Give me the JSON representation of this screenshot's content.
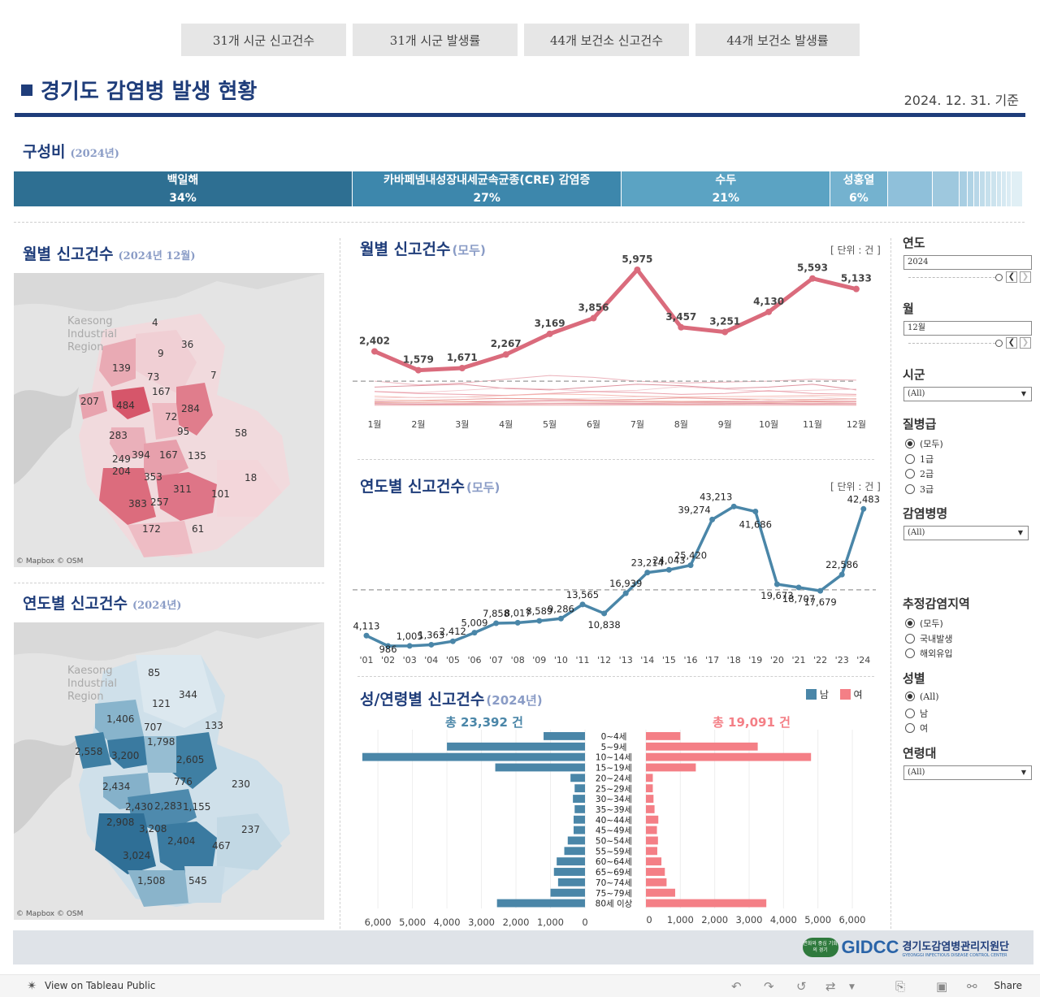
{
  "tabs": [
    "31개 시군 신고건수",
    "31개 시군 발생률",
    "44개 보건소 신고건수",
    "44개 보건소 발생률"
  ],
  "header": {
    "title": "경기도 감염병 발생 현황",
    "as_of": "2024. 12. 31. 기준"
  },
  "composition": {
    "title": "구성비",
    "sub": "(2024년)",
    "segments": [
      {
        "label": "백일해",
        "pct": "34%",
        "color": "#2e6f92"
      },
      {
        "label": "카바페넴내성장내세균속균종(CRE) 감염증",
        "pct": "27%",
        "color": "#3d87ac"
      },
      {
        "label": "수두",
        "pct": "21%",
        "color": "#5ba3c3"
      },
      {
        "label": "성홍열",
        "pct": "6%",
        "color": "#74b2cf"
      }
    ],
    "small_segments": [
      "#8fc0da",
      "#9ec8de",
      "#a8cee2",
      "#b0d3e5",
      "#b8d7e8",
      "#c0dcea",
      "#c6e0ec",
      "#ccE3ee",
      "#d1e6f0",
      "#d6e9f2",
      "#dbecf4",
      "#e0eff5"
    ]
  },
  "map_monthly": {
    "title": "월별 신고건수",
    "sub": "(2024년 12월)",
    "labels": [
      "4",
      "36",
      "9",
      "139",
      "73",
      "7",
      "167",
      "207",
      "484",
      "284",
      "72",
      "95",
      "58",
      "283",
      "394",
      "167",
      "135",
      "249",
      "204",
      "353",
      "18",
      "311",
      "101",
      "383",
      "257",
      "172",
      "61"
    ],
    "ghost": "Kaesong Industrial Region",
    "credit": "© Mapbox  © OSM"
  },
  "map_yearly": {
    "title": "연도별 신고건수",
    "sub": "(2024년)",
    "labels": [
      "85",
      "344",
      "121",
      "1,406",
      "707",
      "133",
      "1,798",
      "2,558",
      "3,200",
      "2,605",
      "2,434",
      "776",
      "230",
      "2,430",
      "2,283",
      "1,155",
      "2,908",
      "3,208",
      "237",
      "2,404",
      "467",
      "3,024",
      "1,508",
      "545"
    ],
    "ghost": "Kaesong Industrial Region",
    "credit": "© Mapbox  © OSM"
  },
  "monthly_chart": {
    "title": "월별 신고건수",
    "sub": "(모두)",
    "unit": "[ 단위 : 건 ]",
    "chart_data": {
      "type": "line",
      "categories": [
        "1월",
        "2월",
        "3월",
        "4월",
        "5월",
        "6월",
        "7월",
        "8월",
        "9월",
        "10월",
        "11월",
        "12월"
      ],
      "series": [
        {
          "values": [
            2402,
            1579,
            1671,
            2267,
            3169,
            3856,
            5975,
            3457,
            3251,
            4130,
            5593,
            5133
          ]
        }
      ],
      "labels": [
        "2,402",
        "1,579",
        "1,671",
        "2,267",
        "3,169",
        "3,856",
        "5,975",
        "3,457",
        "3,251",
        "4,130",
        "5,593",
        "5,133"
      ],
      "ylim": [
        0,
        6400
      ]
    }
  },
  "yearly_chart": {
    "title": "연도별 신고건수",
    "sub": "(모두)",
    "unit": "[ 단위 : 건 ]",
    "chart_data": {
      "type": "line",
      "categories": [
        "'01",
        "'02",
        "'03",
        "'04",
        "'05",
        "'06",
        "'07",
        "'08",
        "'09",
        "'10",
        "'11",
        "'12",
        "'13",
        "'14",
        "'15",
        "'16",
        "'17",
        "'18",
        "'19",
        "'20",
        "'21",
        "'22",
        "'23",
        "'24"
      ],
      "series": [
        {
          "values": [
            4113,
            986,
            1005,
            1363,
            2412,
            5009,
            7858,
            8017,
            8589,
            9286,
            13565,
            10838,
            16939,
            23214,
            24043,
            25420,
            39274,
            43213,
            41686,
            19673,
            18707,
            17679,
            22586,
            42483
          ]
        }
      ],
      "labels": [
        "4,113",
        "986",
        "1,005",
        "1,363",
        "2,412",
        "5,009",
        "7,858",
        "8,017",
        "8,589",
        "9,286",
        "13,565",
        "10,838",
        "16,939",
        "23,214",
        "24,043",
        "25,420",
        "39,274",
        "43,213",
        "41,686",
        "19,673",
        "18,707",
        "17,679",
        "22,586",
        "42,483"
      ],
      "ylim": [
        0,
        46000
      ]
    }
  },
  "pyramid": {
    "title": "성/연령별 신고건수",
    "sub": "(2024년)",
    "legend_m": "남",
    "legend_f": "여",
    "total_m": "총 23,392 건",
    "total_f": "총 19,091 건",
    "color_m": "#4a86a8",
    "color_f": "#f47f86",
    "chart_data": {
      "type": "bar",
      "categories": [
        "0~4세",
        "5~9세",
        "10~14세",
        "15~19세",
        "20~24세",
        "25~29세",
        "30~34세",
        "35~39세",
        "40~44세",
        "45~49세",
        "50~54세",
        "55~59세",
        "60~64세",
        "65~69세",
        "70~74세",
        "75~79세",
        "80세 이상"
      ],
      "series": [
        {
          "name": "남",
          "values": [
            1200,
            4000,
            6450,
            2600,
            420,
            300,
            350,
            300,
            330,
            330,
            500,
            600,
            820,
            900,
            780,
            1000,
            2550
          ]
        },
        {
          "name": "여",
          "values": [
            1000,
            3250,
            4800,
            1450,
            200,
            200,
            220,
            250,
            360,
            320,
            350,
            330,
            450,
            550,
            600,
            850,
            3500
          ]
        }
      ],
      "ticks_m": [
        "6,000",
        "5,000",
        "4,000",
        "3,000",
        "2,000",
        "1,000",
        "0"
      ],
      "ticks_f": [
        "0",
        "1,000",
        "2,000",
        "3,000",
        "4,000",
        "5,000",
        "6,000"
      ]
    }
  },
  "filters": {
    "year": {
      "title": "연도",
      "value": "2024"
    },
    "month": {
      "title": "월",
      "value": "12월"
    },
    "city": {
      "title": "시군",
      "value": "(All)"
    },
    "grade": {
      "title": "질병급",
      "options": [
        "(모두)",
        "1급",
        "2급",
        "3급"
      ],
      "selected": 0
    },
    "disease": {
      "title": "감염병명",
      "value": "(All)"
    },
    "region": {
      "title": "추정감염지역",
      "options": [
        "(모두)",
        "국내발생",
        "해외유입"
      ],
      "selected": 0
    },
    "sex": {
      "title": "성별",
      "options": [
        "(All)",
        "남",
        "여"
      ],
      "selected": 0
    },
    "age": {
      "title": "연령대",
      "value": "(All)"
    }
  },
  "footer": {
    "badge": "변화와 중심 기회의 경기",
    "logo": "GIDCC",
    "org": "경기도감염병관리지원단",
    "org_en": "GYEONGGI INFECTIOUS DISEASE CONTROL CENTER"
  },
  "toolbar": {
    "view_link": "View on Tableau Public",
    "share": "Share"
  }
}
